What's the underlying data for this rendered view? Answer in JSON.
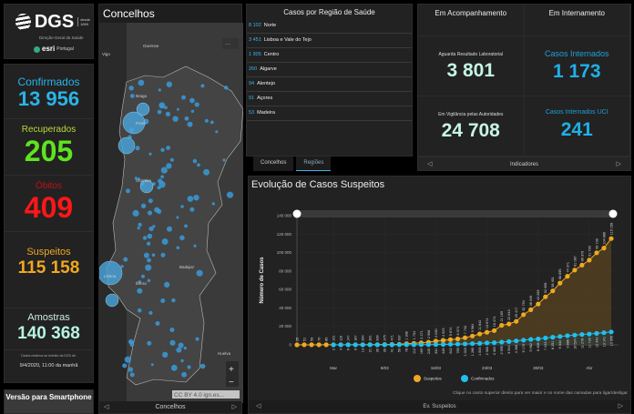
{
  "logo": {
    "name": "DGS",
    "since": "desde 1899",
    "subtitle": "Direção-Geral da Saúde",
    "partner": "esri",
    "partner_suffix": "Portugal"
  },
  "stats": [
    {
      "label": "Confirmados",
      "value": "13 956",
      "color": "#2ab4e8"
    },
    {
      "label": "Recuperados",
      "value": "205",
      "color": "#5ee41e",
      "label_color": "#b8d83a"
    },
    {
      "label": "Óbitos",
      "value": "409",
      "color": "#ff1616",
      "label_color": "#c0101a"
    },
    {
      "label": "Suspeitos",
      "value": "115 158",
      "color": "#f0a820"
    },
    {
      "label": "Amostras",
      "value": "140 368",
      "color": "#b8f2e2",
      "label_color": "#cfe9e0"
    }
  ],
  "update": {
    "note": "Dados relativos ao boletim da DGS de:",
    "date": "9/4/2020, 11:00 da manhã"
  },
  "smartphone_button": "Versão para Smartphone",
  "map": {
    "title": "Concelhos",
    "footer": "Concelhos",
    "attribution": "CC BY 4.0 ign.es...",
    "places": [
      "Ourense",
      "Vigo",
      "Braga",
      "Porto",
      "Coimbra",
      "Lisboa",
      "Évora",
      "Badajoz",
      "Huelva"
    ],
    "zoom_in": "+",
    "zoom_out": "−",
    "menu": "···"
  },
  "regions": {
    "title": "Casos por Região de Saúde",
    "rows": [
      {
        "count": "8 102",
        "name": "Norte"
      },
      {
        "count": "3 451",
        "name": "Lisboa e Vale do Tejo"
      },
      {
        "count": "1 905",
        "name": "Centro"
      },
      {
        "count": "260",
        "name": "Algarve"
      },
      {
        "count": "94",
        "name": "Alentejo"
      },
      {
        "count": "91",
        "name": "Açores"
      },
      {
        "count": "53",
        "name": "Madeira"
      }
    ],
    "tabs": [
      "Concelhos",
      "Regiões"
    ],
    "active_tab": "Regiões"
  },
  "indicators": {
    "headers": [
      "Em Acompanhamento",
      "Em Internamento"
    ],
    "cells": [
      {
        "label": "Aguarda Resultado Laboratorial",
        "value": "3 801"
      },
      {
        "label": "Casos Internados",
        "value": "1 173"
      },
      {
        "label": "Em Vigilância pelas Autoridades",
        "value": "24 708"
      },
      {
        "label": "Casos Internados UCI",
        "value": "241"
      }
    ],
    "footer": "Indicadores"
  },
  "chart_panel": {
    "title": "Evolução de Casos Suspeitos",
    "note": "Clique no canto superior direito para ver maior e no nome das camadas para ligar/desligar",
    "footer": "Ev. Suspeitos"
  },
  "chart_data": {
    "type": "area",
    "ylabel": "Número de Casos",
    "ylim": [
      0,
      140000
    ],
    "yticks": [
      0,
      20000,
      40000,
      60000,
      80000,
      100000,
      120000,
      140000
    ],
    "ytick_labels": [
      "0",
      "20 000",
      "40 000",
      "60 000",
      "80 000",
      "100 000",
      "120 000",
      "140 000"
    ],
    "xlim": [
      "2020-02-26",
      "2020-04-09"
    ],
    "xticks": [
      "2020-03-02",
      "2020-03-09",
      "2020-03-16",
      "2020-03-23",
      "2020-03-30",
      "2020-04-06"
    ],
    "xtick_labels": [
      "Mar",
      "9/03",
      "16/03",
      "23/03",
      "30/03",
      "Abr"
    ],
    "legend": "bottom",
    "grid": true,
    "series": [
      {
        "name": "Suspeitos",
        "color": "#f0a820",
        "start": "2020-02-26",
        "values": [
          25,
          51,
          59,
          70,
          85,
          101,
          116,
          147,
          187,
          200,
          281,
          339,
          375,
          471,
          637,
          1308,
          1704,
          2271,
          2908,
          4030,
          4923,
          5674,
          6374,
          7732,
          9584,
          11842,
          13674,
          15474,
          21169,
          22643,
          25417,
          32754,
          38049,
          44269,
          52008,
          58451,
          66895,
          74371,
          81087,
          86379,
          91799,
          99730,
          104886,
          115158
        ]
      },
      {
        "name": "Confirmados",
        "color": "#1ec0f0",
        "start": "2020-03-02",
        "values": [
          2,
          4,
          6,
          9,
          13,
          21,
          30,
          39,
          41,
          59,
          78,
          112,
          169,
          245,
          331,
          448,
          642,
          785,
          1020,
          1280,
          1600,
          2060,
          2362,
          2995,
          3544,
          4268,
          5170,
          5962,
          6408,
          7443,
          8251,
          9034,
          9886,
          10524,
          11278,
          11730,
          12442,
          13141,
          13956
        ]
      }
    ]
  }
}
